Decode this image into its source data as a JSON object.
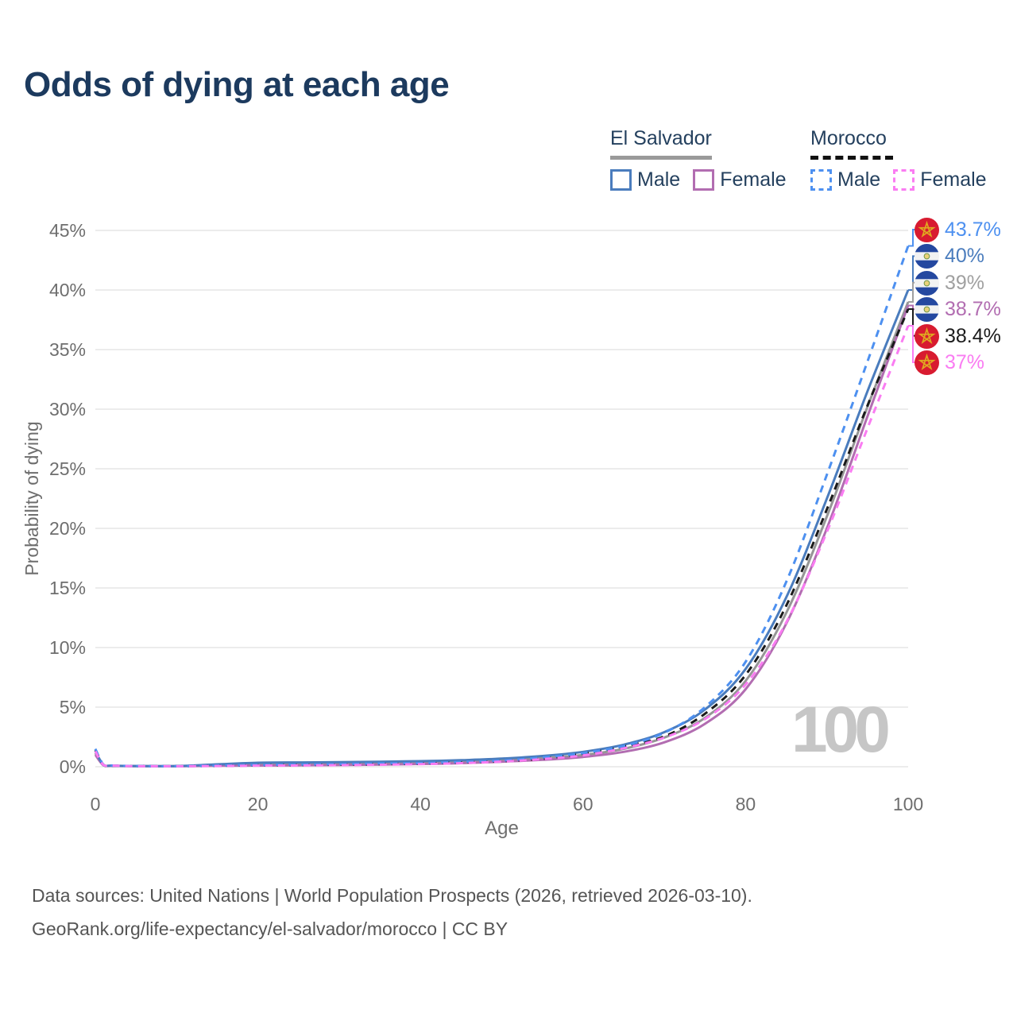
{
  "title": "Odds of dying at each age",
  "legend": {
    "groups": [
      {
        "country": "El Salvador",
        "style": "solid",
        "items": [
          {
            "label": "Male"
          },
          {
            "label": "Female"
          }
        ]
      },
      {
        "country": "Morocco",
        "style": "dashed",
        "items": [
          {
            "label": "Male"
          },
          {
            "label": "Female"
          }
        ]
      }
    ]
  },
  "colors": {
    "title": "#1c3a5e",
    "el_salvador_male": "#4a7cbd",
    "el_salvador_female": "#b26db1",
    "el_salvador_both": "#969696",
    "morocco_male": "#4d90f0",
    "morocco_female": "#fa7cf2",
    "morocco_both": "#1a1a1a",
    "gridline": "#ececec",
    "tick_text": "#6e6e6e",
    "watermark": "#c6c6c6"
  },
  "chart_data": {
    "type": "line",
    "title": "Odds of dying at each age",
    "xlabel": "Age",
    "ylabel": "Probability of dying",
    "xlim": [
      0,
      100
    ],
    "ylim": [
      0,
      45
    ],
    "grid": "horizontal",
    "legend_position": "top-right",
    "x_ticks": [
      {
        "value": 0,
        "label": "0"
      },
      {
        "value": 20,
        "label": "20"
      },
      {
        "value": 40,
        "label": "40"
      },
      {
        "value": 60,
        "label": "60"
      },
      {
        "value": 80,
        "label": "80"
      },
      {
        "value": 100,
        "label": "100"
      }
    ],
    "y_ticks": [
      {
        "value": 0,
        "label": "0%"
      },
      {
        "value": 5,
        "label": "5%"
      },
      {
        "value": 10,
        "label": "10%"
      },
      {
        "value": 15,
        "label": "15%"
      },
      {
        "value": 20,
        "label": "20%"
      },
      {
        "value": 25,
        "label": "25%"
      },
      {
        "value": 30,
        "label": "30%"
      },
      {
        "value": 35,
        "label": "35%"
      },
      {
        "value": 40,
        "label": "40%"
      },
      {
        "value": 45,
        "label": "45%"
      }
    ],
    "x": [
      0,
      1,
      2,
      5,
      10,
      15,
      20,
      25,
      30,
      35,
      40,
      45,
      50,
      55,
      60,
      65,
      70,
      75,
      80,
      85,
      90,
      95,
      100
    ],
    "series": [
      {
        "id": "el-salvador-both",
        "country": "El Salvador",
        "sex": "Both",
        "style": "solid",
        "color": "#969696",
        "values": [
          1.15,
          0.13,
          0.08,
          0.05,
          0.05,
          0.14,
          0.21,
          0.24,
          0.26,
          0.3,
          0.34,
          0.42,
          0.54,
          0.72,
          0.98,
          1.5,
          2.45,
          4.1,
          7.2,
          12.9,
          21.0,
          30.2,
          39.0
        ]
      },
      {
        "id": "el-salvador-female",
        "country": "El Salvador",
        "sex": "Female",
        "style": "solid",
        "color": "#b26db1",
        "values": [
          1.0,
          0.12,
          0.07,
          0.05,
          0.04,
          0.08,
          0.1,
          0.12,
          0.14,
          0.18,
          0.23,
          0.3,
          0.42,
          0.58,
          0.82,
          1.25,
          2.05,
          3.6,
          6.5,
          12.0,
          20.0,
          29.4,
          38.7
        ]
      },
      {
        "id": "el-salvador-male",
        "country": "El Salvador",
        "sex": "Male",
        "style": "solid",
        "color": "#4a7cbd",
        "values": [
          1.3,
          0.15,
          0.09,
          0.06,
          0.06,
          0.2,
          0.33,
          0.36,
          0.38,
          0.42,
          0.47,
          0.55,
          0.68,
          0.9,
          1.25,
          1.85,
          2.9,
          4.8,
          8.2,
          14.2,
          22.5,
          31.5,
          40.0
        ]
      },
      {
        "id": "morocco-both",
        "country": "Morocco",
        "sex": "Both",
        "style": "dashed",
        "color": "#1a1a1a",
        "values": [
          1.4,
          0.16,
          0.09,
          0.055,
          0.045,
          0.08,
          0.12,
          0.14,
          0.17,
          0.21,
          0.26,
          0.36,
          0.45,
          0.66,
          1.1,
          1.7,
          2.55,
          4.45,
          7.7,
          13.5,
          21.6,
          30.3,
          38.4
        ]
      },
      {
        "id": "morocco-male",
        "country": "Morocco",
        "sex": "Male",
        "style": "dashed",
        "color": "#4d90f0",
        "values": [
          1.5,
          0.17,
          0.1,
          0.06,
          0.05,
          0.1,
          0.15,
          0.18,
          0.22,
          0.28,
          0.3,
          0.4,
          0.52,
          0.78,
          1.15,
          1.75,
          2.85,
          5.0,
          8.8,
          15.5,
          24.5,
          34.0,
          43.7
        ]
      },
      {
        "id": "morocco-female",
        "country": "Morocco",
        "sex": "Female",
        "style": "dashed",
        "color": "#fa7cf2",
        "values": [
          1.3,
          0.15,
          0.09,
          0.05,
          0.04,
          0.06,
          0.09,
          0.11,
          0.13,
          0.17,
          0.22,
          0.3,
          0.43,
          0.64,
          0.95,
          1.55,
          2.45,
          4.0,
          6.9,
          12.1,
          19.7,
          28.4,
          37.0
        ]
      }
    ]
  },
  "end_labels": [
    {
      "text": "43.7%",
      "value": 43.7,
      "flag": "morocco",
      "series": "morocco-male",
      "color": "#4d90f0"
    },
    {
      "text": "40%",
      "value": 40.0,
      "flag": "el-salvador",
      "series": "el-salvador-male",
      "color": "#4a7cbd"
    },
    {
      "text": "39%",
      "value": 39.0,
      "flag": "el-salvador",
      "series": "el-salvador-both",
      "color": "#a0a0a0"
    },
    {
      "text": "38.7%",
      "value": 38.7,
      "flag": "el-salvador",
      "series": "el-salvador-female",
      "color": "#b26db1"
    },
    {
      "text": "38.4%",
      "value": 38.4,
      "flag": "morocco",
      "series": "morocco-both",
      "color": "#1c1c1c"
    },
    {
      "text": "37%",
      "value": 37.0,
      "flag": "morocco",
      "series": "morocco-female",
      "color": "#fa7cf2"
    }
  ],
  "watermark": "100",
  "footer": {
    "line1": "Data sources: United Nations | World Population Prospects (2026, retrieved 2026-03-10).",
    "line2": "GeoRank.org/life-expectancy/el-salvador/morocco | CC BY"
  }
}
